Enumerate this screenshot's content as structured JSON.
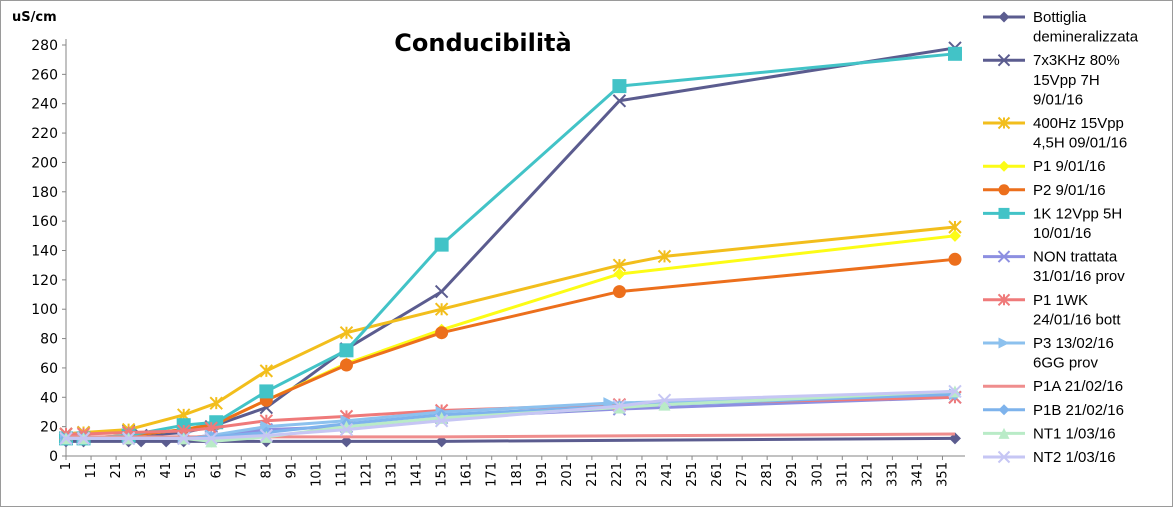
{
  "colors": {
    "axis": "#868686",
    "grid": "#d9d9d9"
  },
  "chart_data": {
    "type": "line",
    "title": "Conducibilità",
    "ylabel": "uS/cm",
    "xlabel": "",
    "ylim": [
      0,
      280
    ],
    "xlim": [
      1,
      360
    ],
    "y_ticks": [
      0,
      20,
      40,
      60,
      80,
      100,
      120,
      140,
      160,
      180,
      200,
      220,
      240,
      260,
      280
    ],
    "x_ticks": [
      "1",
      "11",
      "21",
      "31",
      "41",
      "51",
      "61",
      "71",
      "81",
      "91",
      "101",
      "111",
      "121",
      "131",
      "141",
      "151",
      "161",
      "171",
      "181",
      "191",
      "201",
      "211",
      "221",
      "231",
      "241",
      "251",
      "261",
      "271",
      "281",
      "291",
      "301",
      "311",
      "321",
      "331",
      "341",
      "351"
    ],
    "grid": false,
    "legend_position": "right",
    "series": [
      {
        "name": "Bottiglia demineralizzata",
        "legend_lines": [
          "Bottiglia",
          "demineralizzata"
        ],
        "color": "#5b5c8f",
        "marker": "diamond",
        "x": [
          1,
          8,
          26,
          31,
          41,
          48,
          59,
          81,
          113,
          151,
          356
        ],
        "y": [
          10,
          10,
          10,
          10,
          10,
          10,
          10,
          10,
          10,
          10,
          12
        ]
      },
      {
        "name": "7x3KHz 80% 15Vpp 7H 9/01/16",
        "legend_lines": [
          "7x3KHz 80%",
          "15Vpp 7H",
          "9/01/16"
        ],
        "color": "#5b5c8f",
        "marker": "x",
        "x": [
          1,
          8,
          26,
          31,
          48,
          59,
          81,
          113,
          151,
          222,
          356
        ],
        "y": [
          15,
          16,
          17,
          14,
          16,
          20,
          33,
          73,
          112,
          242,
          278
        ]
      },
      {
        "name": "400Hz 15Vpp 4,5H 09/01/16",
        "legend_lines": [
          "400Hz 15Vpp",
          "4,5H 09/01/16"
        ],
        "color": "#f2be1c",
        "marker": "star",
        "x": [
          1,
          8,
          26,
          48,
          61,
          81,
          113,
          151,
          222,
          240,
          356
        ],
        "y": [
          15,
          16,
          18,
          28,
          36,
          58,
          84,
          100,
          130,
          136,
          156
        ]
      },
      {
        "name": "P1 9/01/16",
        "legend_lines": [
          "P1 9/01/16"
        ],
        "color": "#fcfc16",
        "marker": "diamond",
        "x": [
          1,
          8,
          26,
          48,
          61,
          81,
          113,
          151,
          222,
          356
        ],
        "y": [
          12,
          12,
          14,
          18,
          22,
          38,
          63,
          86,
          124,
          150
        ]
      },
      {
        "name": "P2 9/01/16",
        "legend_lines": [
          "P2 9/01/16"
        ],
        "color": "#ec6f1c",
        "marker": "circle",
        "x": [
          1,
          8,
          26,
          48,
          61,
          81,
          113,
          151,
          222,
          356
        ],
        "y": [
          12,
          12,
          14,
          18,
          22,
          38,
          62,
          84,
          112,
          134
        ]
      },
      {
        "name": "1K 12Vpp 5H 10/01/16",
        "legend_lines": [
          "1K 12Vpp 5H",
          "10/01/16"
        ],
        "color": "#42c3c7",
        "marker": "square",
        "x": [
          1,
          8,
          26,
          48,
          61,
          81,
          113,
          151,
          222,
          356
        ],
        "y": [
          12,
          12,
          14,
          21,
          23,
          44,
          72,
          144,
          252,
          274
        ]
      },
      {
        "name": "NON trattata 31/01/16 prov",
        "legend_lines": [
          "NON trattata",
          "31/01/16 prov"
        ],
        "color": "#8d8fe1",
        "marker": "x",
        "x": [
          1,
          8,
          26,
          48,
          59,
          81,
          113,
          151,
          222,
          356
        ],
        "y": [
          12,
          12,
          12,
          12,
          14,
          18,
          20,
          26,
          32,
          40
        ]
      },
      {
        "name": "P1 1WK 24/01/16 bott",
        "legend_lines": [
          "P1 1WK",
          "24/01/16  bott"
        ],
        "color": "#ef7a7a",
        "marker": "star",
        "x": [
          1,
          8,
          26,
          48,
          59,
          81,
          113,
          151,
          222,
          356
        ],
        "y": [
          15,
          15,
          16,
          17,
          19,
          24,
          27,
          31,
          35,
          40
        ]
      },
      {
        "name": "P3 13/02/16 6GG prov",
        "legend_lines": [
          "P3 13/02/16",
          "6GG prov"
        ],
        "color": "#8cc1ee",
        "marker": "triangle-right",
        "x": [
          1,
          8,
          26,
          48,
          59,
          81,
          113,
          151,
          218,
          356
        ],
        "y": [
          12,
          12,
          12,
          12,
          14,
          20,
          24,
          30,
          36,
          42
        ]
      },
      {
        "name": "P1A 21/02/16",
        "legend_lines": [
          "P1A 21/02/16"
        ],
        "color": "#ef8d8d",
        "marker": "none",
        "x": [
          1,
          8,
          26,
          48,
          59,
          81,
          113,
          151,
          356
        ],
        "y": [
          13,
          13,
          13,
          13,
          13,
          13,
          13,
          13,
          15
        ]
      },
      {
        "name": "P1B 21/02/16",
        "legend_lines": [
          "P1B 21/02/16"
        ],
        "color": "#7eb3ec",
        "marker": "diamond",
        "x": [
          1,
          8,
          26,
          48,
          59,
          81,
          113,
          151,
          222,
          356
        ],
        "y": [
          12,
          12,
          12,
          12,
          13,
          16,
          22,
          28,
          34,
          42
        ]
      },
      {
        "name": "NT1 1/03/16",
        "legend_lines": [
          "NT1 1/03/16"
        ],
        "color": "#b9ebc7",
        "marker": "triangle",
        "x": [
          1,
          8,
          26,
          48,
          59,
          81,
          113,
          151,
          222,
          240,
          356
        ],
        "y": [
          12,
          12,
          12,
          12,
          10,
          13,
          20,
          26,
          33,
          35,
          44
        ]
      },
      {
        "name": "NT2 1/03/16",
        "legend_lines": [
          "NT2 1/03/16"
        ],
        "color": "#c6c6f4",
        "marker": "x",
        "x": [
          1,
          8,
          26,
          48,
          59,
          81,
          113,
          151,
          222,
          240,
          356
        ],
        "y": [
          12,
          12,
          12,
          12,
          12,
          14,
          18,
          24,
          34,
          38,
          44
        ]
      }
    ]
  }
}
